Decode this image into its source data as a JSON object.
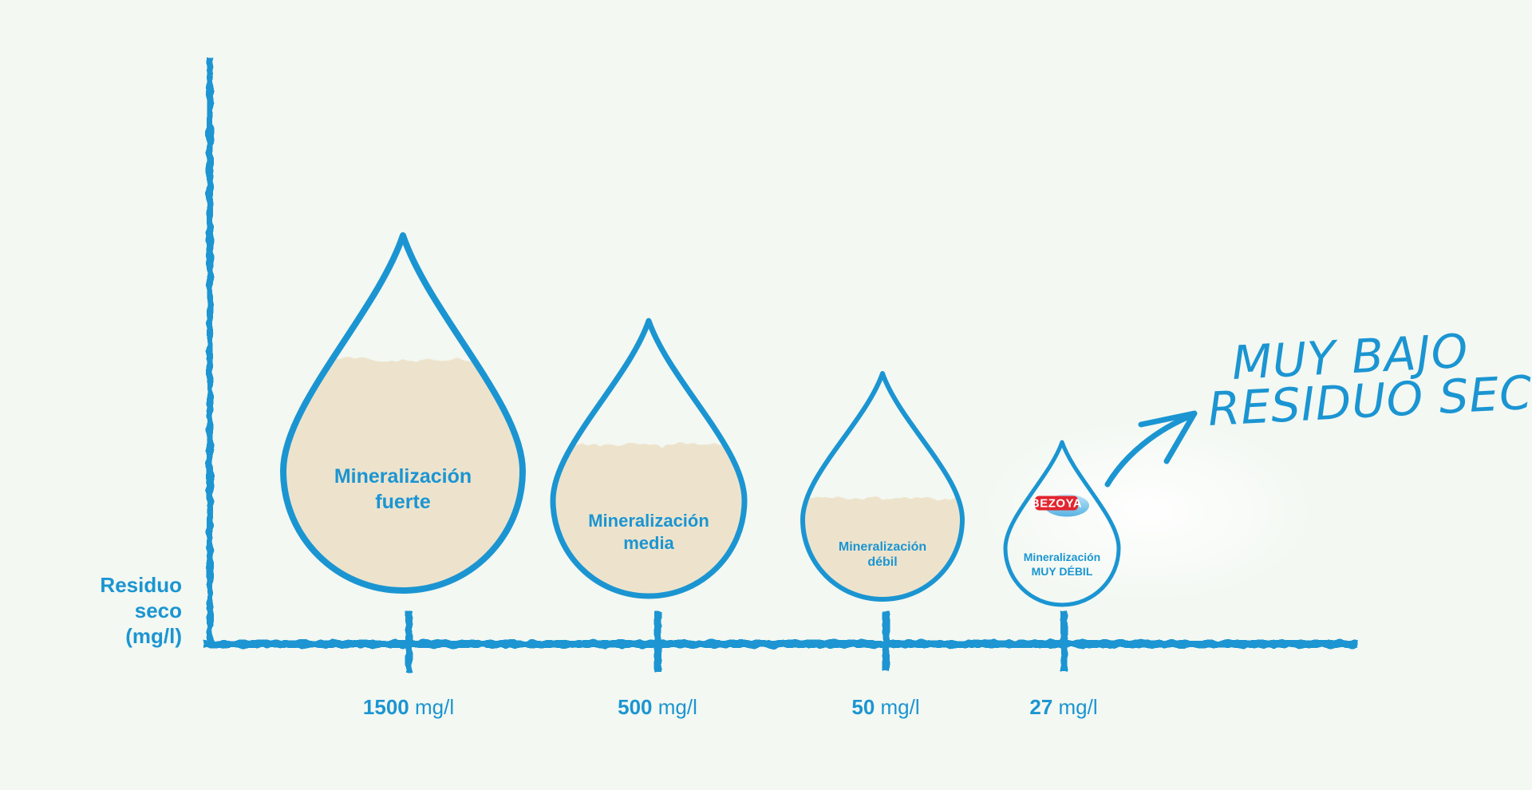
{
  "chart_data": {
    "type": "bar",
    "ylabel": [
      "Residuo",
      "seco",
      "(mg/l)"
    ],
    "categories": [
      [
        "Mineralización",
        "fuerte"
      ],
      [
        "Mineralización",
        "media"
      ],
      [
        "Mineralización",
        "débil"
      ],
      [
        "Mineralización",
        "MUY DÉBIL"
      ]
    ],
    "values": [
      1500,
      500,
      50,
      27
    ],
    "unit": "mg/l",
    "fill_level": [
      0.65,
      0.55,
      0.45,
      0.0
    ],
    "annotation": [
      "MUY BAJO",
      "RESIDUO SECO"
    ],
    "brand_logo": "BEZOYA"
  },
  "colors": {
    "background": "#f3f8f2",
    "accent": "#1b95d2",
    "sediment": "#ede3cc"
  }
}
